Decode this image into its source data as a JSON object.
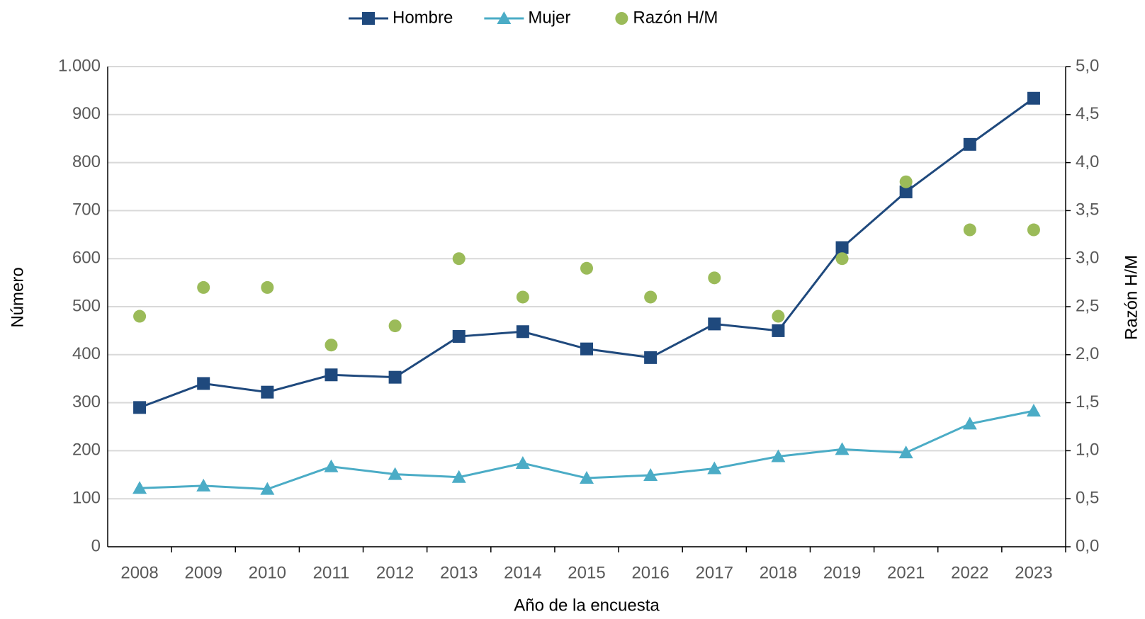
{
  "chart_data": {
    "type": "line",
    "x_label": "Año de la encuesta",
    "y_label": "Número",
    "y2_label": "Razón H/M",
    "categories": [
      "2008",
      "2009",
      "2010",
      "2011",
      "2012",
      "2013",
      "2014",
      "2015",
      "2016",
      "2017",
      "2018",
      "2019",
      "2021",
      "2022",
      "2023"
    ],
    "series": [
      {
        "name": "Hombre",
        "color": "#1f497d",
        "marker": "square",
        "line": true,
        "values": [
          290,
          340,
          322,
          358,
          353,
          438,
          448,
          412,
          394,
          464,
          450,
          623,
          739,
          838,
          934
        ]
      },
      {
        "name": "Mujer",
        "color": "#4bacc6",
        "marker": "triangle",
        "line": true,
        "values": [
          122,
          127,
          120,
          167,
          151,
          145,
          174,
          143,
          149,
          163,
          188,
          203,
          196,
          256,
          283
        ]
      },
      {
        "name": "Razón H/M",
        "color": "#9bbb59",
        "marker": "circle",
        "line": false,
        "axis": "y2",
        "values": [
          2.4,
          2.7,
          2.7,
          2.1,
          2.3,
          3.0,
          2.6,
          2.9,
          2.6,
          2.8,
          2.4,
          3.0,
          3.8,
          3.3,
          3.3
        ]
      }
    ],
    "ylim": [
      0,
      1000
    ],
    "yticks": [
      0,
      100,
      200,
      300,
      400,
      500,
      600,
      700,
      800,
      900,
      {
        "value": 1000,
        "label": "1.000"
      }
    ],
    "y2lim": [
      0,
      5
    ],
    "y2ticks": [
      {
        "value": 0,
        "label": "0,0"
      },
      {
        "value": 0.5,
        "label": "0,5"
      },
      {
        "value": 1,
        "label": "1,0"
      },
      {
        "value": 1.5,
        "label": "1,5"
      },
      {
        "value": 2,
        "label": "2,0"
      },
      {
        "value": 2.5,
        "label": "2,5"
      },
      {
        "value": 3,
        "label": "3,0"
      },
      {
        "value": 3.5,
        "label": "3,5"
      },
      {
        "value": 4,
        "label": "4,0"
      },
      {
        "value": 4.5,
        "label": "4,5"
      },
      {
        "value": 5,
        "label": "5,0"
      }
    ],
    "grid": true,
    "legend": "top"
  }
}
